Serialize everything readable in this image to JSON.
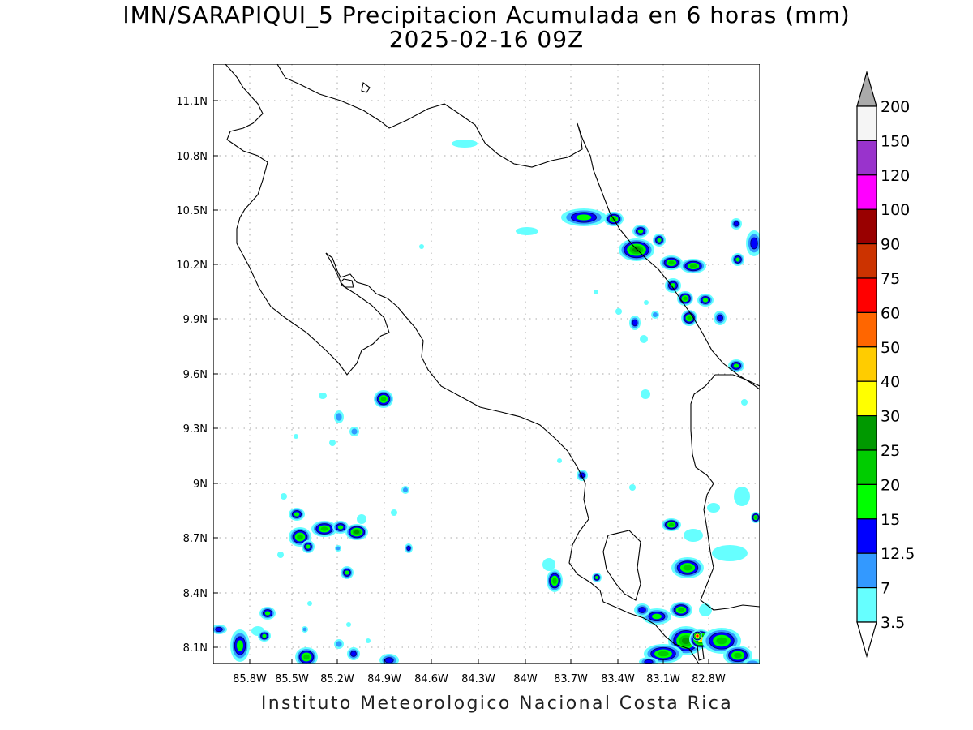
{
  "title": "IMN/SARAPIQUI_5 Precipitacion Acumulada en 6 horas (mm)",
  "subtitle": "2025-02-16 09Z",
  "footer": "Instituto Meteorologico Nacional Costa Rica",
  "lon_labels": [
    "85.8W",
    "85.5W",
    "85.2W",
    "84.9W",
    "84.6W",
    "84.3W",
    "84W",
    "83.7W",
    "83.4W",
    "83.1W",
    "82.8W"
  ],
  "lat_labels": [
    "11.1N",
    "10.8N",
    "10.5N",
    "10.2N",
    "9.9N",
    "9.6N",
    "9.3N",
    "9N",
    "8.7N",
    "8.4N",
    "8.1N"
  ],
  "legend": {
    "levels": [
      "3.5",
      "7",
      "12.5",
      "15",
      "20",
      "25",
      "30",
      "40",
      "50",
      "60",
      "75",
      "90",
      "100",
      "120",
      "150",
      "200"
    ],
    "colors": [
      "#ffffff",
      "#66ffff",
      "#3399ff",
      "#0000ff",
      "#00ff00",
      "#00cc00",
      "#009900",
      "#ffff00",
      "#ffcc00",
      "#ff6600",
      "#ff0000",
      "#cc3300",
      "#990000",
      "#ff00ff",
      "#9933cc",
      "#f5f5f5",
      "#aaaaaa"
    ]
  },
  "map": {
    "lon_range": [
      -86.0,
      -83.0
    ],
    "lat_range": [
      8.0,
      11.3
    ],
    "region": "Costa Rica"
  }
}
